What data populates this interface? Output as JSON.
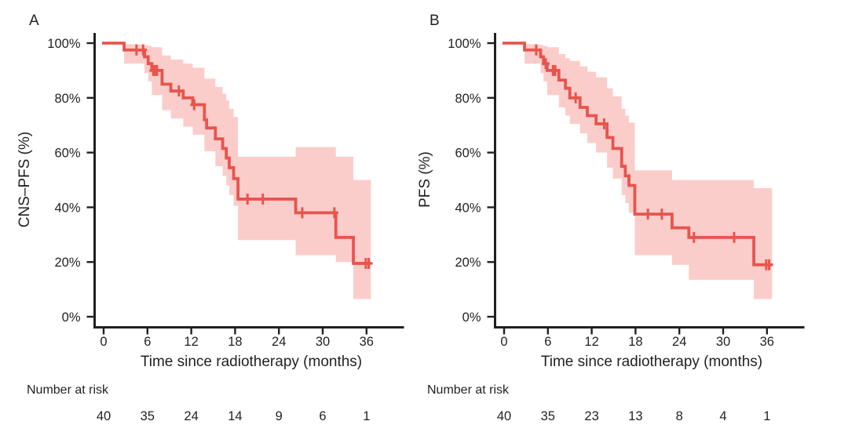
{
  "figure": {
    "colors": {
      "line": "#e8544e",
      "band": "#fbcdca",
      "axis": "#231f20",
      "text": "#231f20",
      "background": "#ffffff"
    }
  },
  "chart_data": [
    {
      "type": "line",
      "km_type": "kaplan_meier_step",
      "panel_label": "A",
      "ylabel": "CNS–PFS (%)",
      "xlabel": "Time since radiotherapy (months)",
      "ylim": [
        0,
        100
      ],
      "xlim": [
        0,
        40
      ],
      "grid": false,
      "legend": "none",
      "x_ticks": [
        0,
        6,
        12,
        18,
        24,
        30,
        36
      ],
      "y_tick_values": [
        100,
        80,
        60,
        40,
        20,
        0
      ],
      "y_tick_labels": [
        "100%",
        "80%",
        "60%",
        "40%",
        "20%",
        "0%"
      ],
      "end_time": 36.6,
      "steps": [
        [
          0,
          100
        ],
        [
          2.8,
          97.5
        ],
        [
          5.6,
          95
        ],
        [
          6.1,
          92.5
        ],
        [
          6.6,
          90
        ],
        [
          8.0,
          85
        ],
        [
          9.2,
          82.5
        ],
        [
          10.9,
          80
        ],
        [
          12.2,
          77.5
        ],
        [
          13.8,
          72
        ],
        [
          14.1,
          69
        ],
        [
          15.3,
          65
        ],
        [
          16.3,
          61.5
        ],
        [
          16.8,
          58
        ],
        [
          17.2,
          54.5
        ],
        [
          17.8,
          50.5
        ],
        [
          18.4,
          43
        ],
        [
          26.3,
          38
        ],
        [
          31.8,
          29
        ],
        [
          34.2,
          19.5
        ]
      ],
      "censor_marks": [
        [
          4.5,
          97.5
        ],
        [
          5.4,
          97.5
        ],
        [
          6.8,
          90
        ],
        [
          7.0,
          90
        ],
        [
          7.3,
          90
        ],
        [
          10.3,
          82.5
        ],
        [
          12.4,
          77.5
        ],
        [
          19.7,
          43
        ],
        [
          21.8,
          43
        ],
        [
          27.2,
          38
        ],
        [
          31.6,
          38
        ],
        [
          35.9,
          19.5
        ],
        [
          36.3,
          19.5
        ]
      ],
      "confidence_band": [
        [
          2.8,
          99.6,
          92.5
        ],
        [
          5.6,
          99.3,
          89
        ],
        [
          6.1,
          99,
          86
        ],
        [
          6.6,
          98.5,
          81
        ],
        [
          8.0,
          95.5,
          75.5
        ],
        [
          9.2,
          94,
          72.5
        ],
        [
          10.9,
          92.5,
          69.5
        ],
        [
          12.2,
          91,
          66.5
        ],
        [
          13.8,
          87,
          60.5
        ],
        [
          15.3,
          84,
          55
        ],
        [
          16.3,
          81.5,
          51.5
        ],
        [
          16.8,
          79,
          48
        ],
        [
          17.2,
          76,
          44.5
        ],
        [
          17.8,
          73,
          40.5
        ],
        [
          18.4,
          58.5,
          28
        ],
        [
          26.3,
          62,
          22.5
        ],
        [
          31.8,
          58.5,
          20
        ],
        [
          34.2,
          50,
          6.5
        ]
      ],
      "number_at_risk": {
        "label": "Number at risk",
        "times": [
          0,
          6,
          12,
          18,
          24,
          30,
          36
        ],
        "values": [
          40,
          35,
          24,
          14,
          9,
          6,
          1
        ]
      }
    },
    {
      "type": "line",
      "km_type": "kaplan_meier_step",
      "panel_label": "B",
      "ylabel": "PFS (%)",
      "xlabel": "Time since radiotherapy (months)",
      "ylim": [
        0,
        100
      ],
      "xlim": [
        0,
        40
      ],
      "grid": false,
      "legend": "none",
      "x_ticks": [
        0,
        6,
        12,
        18,
        24,
        30,
        36
      ],
      "y_tick_values": [
        100,
        80,
        60,
        40,
        20,
        0
      ],
      "y_tick_labels": [
        "100%",
        "80%",
        "60%",
        "40%",
        "20%",
        "0%"
      ],
      "end_time": 36.7,
      "steps": [
        [
          0,
          100
        ],
        [
          2.8,
          97.5
        ],
        [
          5.0,
          95
        ],
        [
          5.4,
          92.5
        ],
        [
          5.9,
          90
        ],
        [
          7.5,
          86.5
        ],
        [
          8.4,
          83.5
        ],
        [
          9.0,
          80
        ],
        [
          10.4,
          76.5
        ],
        [
          11.4,
          73.5
        ],
        [
          12.6,
          70.5
        ],
        [
          14.1,
          65.5
        ],
        [
          14.9,
          61.5
        ],
        [
          16.1,
          55
        ],
        [
          16.6,
          51.5
        ],
        [
          17.1,
          48
        ],
        [
          17.9,
          37.5
        ],
        [
          23.0,
          32.5
        ],
        [
          25.3,
          29
        ],
        [
          34.2,
          19
        ]
      ],
      "censor_marks": [
        [
          4.4,
          97.5
        ],
        [
          5.7,
          92.5
        ],
        [
          6.7,
          90
        ],
        [
          7.0,
          90
        ],
        [
          9.8,
          80
        ],
        [
          13.7,
          70.5
        ],
        [
          19.7,
          37.5
        ],
        [
          21.6,
          37.5
        ],
        [
          26.0,
          29
        ],
        [
          31.5,
          29
        ],
        [
          35.9,
          19
        ],
        [
          36.3,
          19
        ]
      ],
      "confidence_band": [
        [
          2.8,
          99.6,
          92.5
        ],
        [
          5.0,
          99.3,
          89
        ],
        [
          5.4,
          99,
          86
        ],
        [
          5.9,
          98.5,
          81
        ],
        [
          7.5,
          96,
          76.5
        ],
        [
          8.4,
          94.5,
          73.5
        ],
        [
          9.0,
          93.5,
          70.5
        ],
        [
          10.4,
          91.5,
          67
        ],
        [
          11.4,
          89.5,
          63.5
        ],
        [
          12.6,
          87.5,
          60
        ],
        [
          14.1,
          83.5,
          54.5
        ],
        [
          14.9,
          80.5,
          50.5
        ],
        [
          16.1,
          76,
          44.5
        ],
        [
          16.6,
          73.5,
          41.5
        ],
        [
          17.1,
          71,
          38
        ],
        [
          17.9,
          53.5,
          22.5
        ],
        [
          23.0,
          50,
          19
        ],
        [
          25.3,
          50,
          13.5
        ],
        [
          34.2,
          47,
          6.5
        ]
      ],
      "number_at_risk": {
        "label": "Number at risk",
        "times": [
          0,
          6,
          12,
          18,
          24,
          30,
          36
        ],
        "values": [
          40,
          35,
          23,
          13,
          8,
          4,
          1
        ]
      }
    }
  ]
}
